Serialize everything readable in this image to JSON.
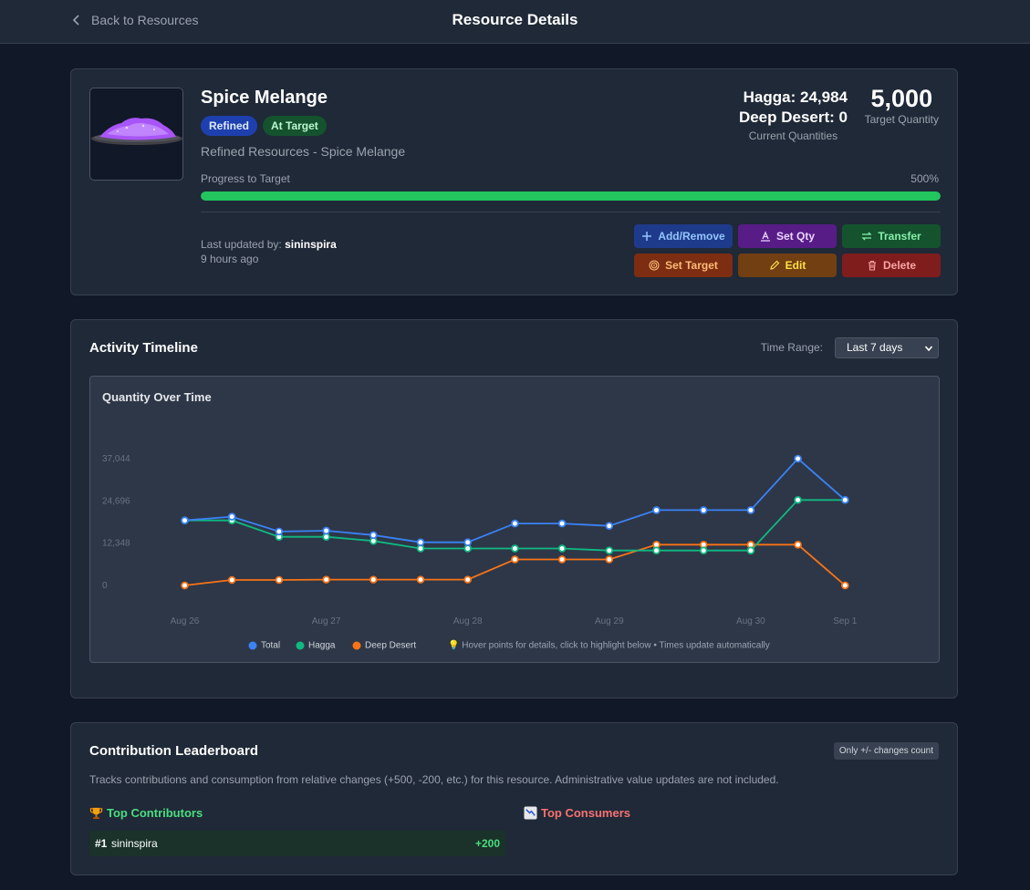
{
  "nav": {
    "back_label": "Back to Resources",
    "page_title": "Resource Details"
  },
  "resource": {
    "name": "Spice Melange",
    "badges": [
      "Refined",
      "At Target"
    ],
    "subtitle": "Refined Resources - Spice Melange",
    "quantities": {
      "hagga": "Hagga: 24,984",
      "deep_desert": "Deep Desert: 0",
      "caption": "Current Quantities"
    },
    "target": {
      "value": "5,000",
      "caption": "Target Quantity"
    },
    "progress": {
      "label": "Progress to Target",
      "pct_text": "500%",
      "fill_fraction": 1.0
    },
    "updated": {
      "prefix": "Last updated by: ",
      "user": "sininspira",
      "ago": "9 hours ago"
    }
  },
  "actions": {
    "add_remove": "Add/Remove",
    "set_qty": "Set Qty",
    "transfer": "Transfer",
    "set_target": "Set Target",
    "edit": "Edit",
    "delete": "Delete"
  },
  "timeline": {
    "title": "Activity Timeline",
    "range_label": "Time Range:",
    "range_value": "Last 7 days",
    "chart_title": "Quantity Over Time",
    "tip": "💡 Hover points for details, click to highlight below • Times update automatically"
  },
  "chart_data": {
    "type": "line",
    "title": "Quantity Over Time",
    "x_ticks": [
      "Aug 26",
      "Aug 27",
      "Aug 28",
      "Aug 29",
      "Aug 30",
      "Sep 1"
    ],
    "x_tick_positions": [
      0,
      3,
      6,
      9,
      12,
      14
    ],
    "y_ticks": [
      "37,044",
      "24,696",
      "12,348",
      "0"
    ],
    "ylim": [
      0,
      37044
    ],
    "series": [
      {
        "name": "Total",
        "color": "#3b82f6",
        "values": [
          19000,
          20100,
          15750,
          16000,
          14700,
          12600,
          12600,
          18100,
          18100,
          17400,
          22000,
          22000,
          22000,
          37044,
          24984
        ]
      },
      {
        "name": "Hagga",
        "color": "#10b981",
        "values": [
          19000,
          19000,
          14200,
          14200,
          13000,
          10800,
          10800,
          10800,
          10800,
          10200,
          10200,
          10200,
          10200,
          24984,
          24984
        ]
      },
      {
        "name": "Deep Desert",
        "color": "#f97316",
        "values": [
          0,
          1600,
          1600,
          1700,
          1700,
          1700,
          1700,
          7600,
          7600,
          7600,
          11900,
          11900,
          11900,
          11900,
          0
        ]
      }
    ]
  },
  "leaderboard": {
    "title": "Contribution Leaderboard",
    "note": "Only +/- changes count",
    "description": "Tracks contributions and consumption from relative changes (+500, -200, etc.) for this resource. Administrative value updates are not included.",
    "contributors_title": "Top Contributors",
    "consumers_title": "Top Consumers",
    "contributors": [
      {
        "rank": "#1",
        "user": "sininspira",
        "value": "+200"
      }
    ]
  }
}
